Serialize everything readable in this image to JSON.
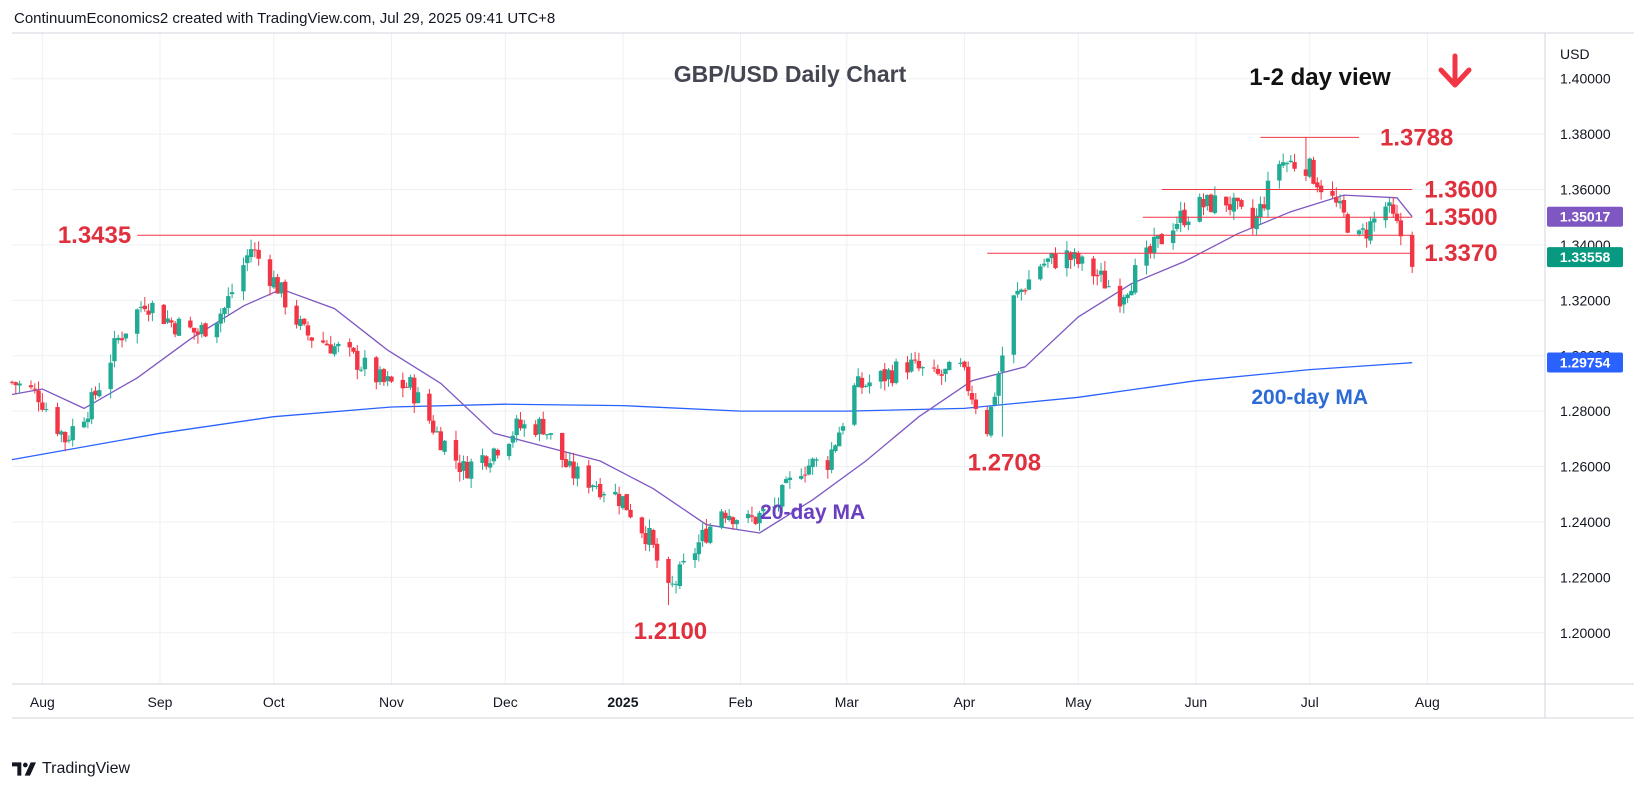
{
  "header": {
    "attribution": "ContinuumEconomics2 created with TradingView.com, Jul 29, 2025 09:41 UTC+8"
  },
  "footer": {
    "brand": "TradingView"
  },
  "colors": {
    "up": "#22ab94",
    "down": "#f23645",
    "ma20": "#7e57c2",
    "ma200": "#2962ff",
    "level_line": "#f23645",
    "level_text": "#e0303d",
    "annotation_blue": "#2b6bd6",
    "annotation_purple": "#6a3fc0",
    "grid": "#eef0f3"
  },
  "chart_data": {
    "type": "candlestick",
    "title": "GBP/USD Daily Chart",
    "subtitle": "1-2 day view",
    "view_icon": "down-arrow-icon",
    "currency": "USD",
    "ylim": [
      1.1815,
      1.4165
    ],
    "y_ticks": [
      "1.40000",
      "1.38000",
      "1.36000",
      "1.34000",
      "1.32000",
      "1.30000",
      "1.28000",
      "1.26000",
      "1.24000",
      "1.22000",
      "1.20000"
    ],
    "x_ticks": [
      {
        "date": "2024-08-01",
        "label": "Aug"
      },
      {
        "date": "2024-09-01",
        "label": "Sep"
      },
      {
        "date": "2024-10-01",
        "label": "Oct"
      },
      {
        "date": "2024-11-01",
        "label": "Nov"
      },
      {
        "date": "2024-12-01",
        "label": "Dec"
      },
      {
        "date": "2025-01-01",
        "label": "2025",
        "bold": true
      },
      {
        "date": "2025-02-01",
        "label": "Feb"
      },
      {
        "date": "2025-03-01",
        "label": "Mar"
      },
      {
        "date": "2025-04-01",
        "label": "Apr"
      },
      {
        "date": "2025-05-01",
        "label": "May"
      },
      {
        "date": "2025-06-01",
        "label": "Jun"
      },
      {
        "date": "2025-07-01",
        "label": "Jul"
      },
      {
        "date": "2025-08-01",
        "label": "Aug"
      }
    ],
    "x_range": [
      "2024-07-24",
      "2025-09-01"
    ],
    "close_path": [
      {
        "date": "2024-07-24",
        "close": 1.2905
      },
      {
        "date": "2024-07-31",
        "close": 1.286
      },
      {
        "date": "2024-08-07",
        "close": 1.27
      },
      {
        "date": "2024-08-14",
        "close": 1.283
      },
      {
        "date": "2024-08-21",
        "close": 1.306
      },
      {
        "date": "2024-08-28",
        "close": 1.32
      },
      {
        "date": "2024-09-04",
        "close": 1.312
      },
      {
        "date": "2024-09-11",
        "close": 1.308
      },
      {
        "date": "2024-09-18",
        "close": 1.317
      },
      {
        "date": "2024-09-25",
        "close": 1.339
      },
      {
        "date": "2024-10-02",
        "close": 1.325
      },
      {
        "date": "2024-10-09",
        "close": 1.308
      },
      {
        "date": "2024-10-16",
        "close": 1.304
      },
      {
        "date": "2024-10-23",
        "close": 1.298
      },
      {
        "date": "2024-10-30",
        "close": 1.29
      },
      {
        "date": "2024-11-06",
        "close": 1.289
      },
      {
        "date": "2024-11-13",
        "close": 1.272
      },
      {
        "date": "2024-11-20",
        "close": 1.259
      },
      {
        "date": "2024-11-27",
        "close": 1.265
      },
      {
        "date": "2024-12-04",
        "close": 1.274
      },
      {
        "date": "2024-12-11",
        "close": 1.275
      },
      {
        "date": "2024-12-18",
        "close": 1.258
      },
      {
        "date": "2024-12-25",
        "close": 1.254
      },
      {
        "date": "2025-01-01",
        "close": 1.248
      },
      {
        "date": "2025-01-08",
        "close": 1.234
      },
      {
        "date": "2025-01-13",
        "close": 1.214
      },
      {
        "date": "2025-01-20",
        "close": 1.23
      },
      {
        "date": "2025-01-27",
        "close": 1.245
      },
      {
        "date": "2025-02-03",
        "close": 1.24
      },
      {
        "date": "2025-02-10",
        "close": 1.245
      },
      {
        "date": "2025-02-17",
        "close": 1.26
      },
      {
        "date": "2025-02-24",
        "close": 1.262
      },
      {
        "date": "2025-03-03",
        "close": 1.288
      },
      {
        "date": "2025-03-10",
        "close": 1.292
      },
      {
        "date": "2025-03-17",
        "close": 1.297
      },
      {
        "date": "2025-03-24",
        "close": 1.292
      },
      {
        "date": "2025-03-31",
        "close": 1.295
      },
      {
        "date": "2025-04-07",
        "close": 1.274
      },
      {
        "date": "2025-04-14",
        "close": 1.32
      },
      {
        "date": "2025-04-21",
        "close": 1.333
      },
      {
        "date": "2025-04-28",
        "close": 1.336
      },
      {
        "date": "2025-05-05",
        "close": 1.33
      },
      {
        "date": "2025-05-12",
        "close": 1.322
      },
      {
        "date": "2025-05-19",
        "close": 1.335
      },
      {
        "date": "2025-05-26",
        "close": 1.348
      },
      {
        "date": "2025-06-02",
        "close": 1.354
      },
      {
        "date": "2025-06-09",
        "close": 1.356
      },
      {
        "date": "2025-06-16",
        "close": 1.346
      },
      {
        "date": "2025-06-23",
        "close": 1.37
      },
      {
        "date": "2025-06-30",
        "close": 1.369
      },
      {
        "date": "2025-07-07",
        "close": 1.356
      },
      {
        "date": "2025-07-14",
        "close": 1.342
      },
      {
        "date": "2025-07-21",
        "close": 1.354
      },
      {
        "date": "2025-07-28",
        "close": 1.3356
      }
    ],
    "ma20": [
      {
        "date": "2024-07-24",
        "value": 1.286
      },
      {
        "date": "2024-08-01",
        "value": 1.288
      },
      {
        "date": "2024-08-12",
        "value": 1.281
      },
      {
        "date": "2024-08-26",
        "value": 1.292
      },
      {
        "date": "2024-09-09",
        "value": 1.306
      },
      {
        "date": "2024-09-23",
        "value": 1.318
      },
      {
        "date": "2024-10-03",
        "value": 1.324
      },
      {
        "date": "2024-10-17",
        "value": 1.317
      },
      {
        "date": "2024-10-31",
        "value": 1.302
      },
      {
        "date": "2024-11-14",
        "value": 1.29
      },
      {
        "date": "2024-11-28",
        "value": 1.272
      },
      {
        "date": "2024-12-12",
        "value": 1.267
      },
      {
        "date": "2024-12-26",
        "value": 1.262
      },
      {
        "date": "2025-01-09",
        "value": 1.252
      },
      {
        "date": "2025-01-23",
        "value": 1.239
      },
      {
        "date": "2025-02-06",
        "value": 1.236
      },
      {
        "date": "2025-02-20",
        "value": 1.248
      },
      {
        "date": "2025-03-06",
        "value": 1.262
      },
      {
        "date": "2025-03-20",
        "value": 1.278
      },
      {
        "date": "2025-04-03",
        "value": 1.291
      },
      {
        "date": "2025-04-17",
        "value": 1.296
      },
      {
        "date": "2025-05-01",
        "value": 1.314
      },
      {
        "date": "2025-05-15",
        "value": 1.326
      },
      {
        "date": "2025-05-29",
        "value": 1.334
      },
      {
        "date": "2025-06-12",
        "value": 1.344
      },
      {
        "date": "2025-06-26",
        "value": 1.352
      },
      {
        "date": "2025-07-10",
        "value": 1.358
      },
      {
        "date": "2025-07-24",
        "value": 1.357
      },
      {
        "date": "2025-07-28",
        "value": 1.3502
      }
    ],
    "ma200": [
      {
        "date": "2024-07-24",
        "value": 1.2625
      },
      {
        "date": "2024-09-01",
        "value": 1.272
      },
      {
        "date": "2024-10-01",
        "value": 1.278
      },
      {
        "date": "2024-11-01",
        "value": 1.2815
      },
      {
        "date": "2024-12-01",
        "value": 1.2825
      },
      {
        "date": "2025-01-01",
        "value": 1.282
      },
      {
        "date": "2025-02-01",
        "value": 1.28
      },
      {
        "date": "2025-03-01",
        "value": 1.28
      },
      {
        "date": "2025-04-01",
        "value": 1.281
      },
      {
        "date": "2025-05-01",
        "value": 1.285
      },
      {
        "date": "2025-06-01",
        "value": 1.291
      },
      {
        "date": "2025-07-01",
        "value": 1.295
      },
      {
        "date": "2025-07-28",
        "value": 1.2975
      }
    ],
    "levels": [
      {
        "label": "1.3788",
        "value": 1.3788,
        "from": "2025-06-18",
        "to": "2025-07-14",
        "label_side": "right"
      },
      {
        "label": "1.3600",
        "value": 1.36,
        "from": "2025-05-23",
        "to": "2025-07-28",
        "label_side": "right"
      },
      {
        "label": "1.3500",
        "value": 1.35,
        "from": "2025-05-18",
        "to": "2025-07-28",
        "label_side": "right"
      },
      {
        "label": "1.3435",
        "value": 1.3435,
        "from": "2024-08-26",
        "to": "2025-07-28",
        "label_side": "left"
      },
      {
        "label": "1.3370",
        "value": 1.337,
        "from": "2025-04-07",
        "to": "2025-07-28",
        "label_side": "right"
      }
    ],
    "extreme_labels": [
      {
        "label": "1.2100",
        "date": "2025-01-13",
        "value": 1.21
      },
      {
        "label": "1.2708",
        "date": "2025-04-11",
        "value": 1.2708
      }
    ],
    "annotations": [
      {
        "text": "20-day MA",
        "date": "2025-02-20",
        "value": 1.241,
        "color": "purple"
      },
      {
        "text": "200-day MA",
        "date": "2025-07-01",
        "value": 1.2825,
        "color": "blue"
      }
    ],
    "price_badges": [
      {
        "label": "1.35017",
        "value": 1.35017,
        "color": "#7e57c2"
      },
      {
        "label": "1.33558",
        "value": 1.33558,
        "color": "#089981"
      },
      {
        "label": "1.29754",
        "value": 1.29754,
        "color": "#2962ff"
      }
    ]
  }
}
